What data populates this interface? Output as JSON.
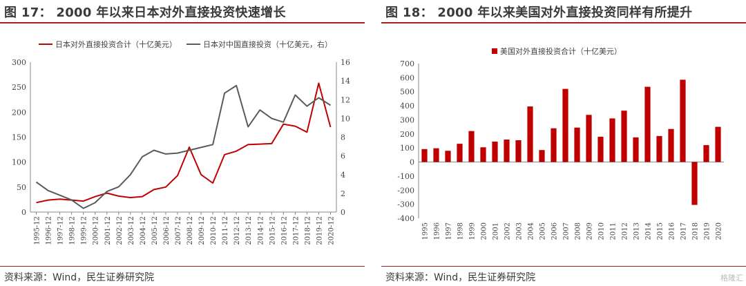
{
  "panels": [
    {
      "title": "图 17：  2000 年以来日本对外直接投资快速增长",
      "source": "资料来源：Wind，民生证券研究院"
    },
    {
      "title": "图 18：  2000 年以来美国对外直接投资同样有所提升",
      "source": "资料来源：Wind，民生证券研究院"
    }
  ],
  "watermark": "格隆汇",
  "chart_data": [
    {
      "type": "line",
      "title": "",
      "x": [
        "1995-12",
        "1996-12",
        "1997-12",
        "1998-12",
        "1999-12",
        "2000-12",
        "2001-12",
        "2002-12",
        "2003-12",
        "2004-12",
        "2005-12",
        "2006-12",
        "2007-12",
        "2008-12",
        "2009-12",
        "2010-12",
        "2011-12",
        "2012-12",
        "2013-12",
        "2014-12",
        "2015-12",
        "2016-12",
        "2017-12",
        "2018-12",
        "2019-12",
        "2020-12"
      ],
      "series": [
        {
          "name": "日本对外直接投资合计（十亿美元）",
          "axis": "left",
          "color": "#c00000",
          "values": [
            19,
            24,
            26,
            24,
            22,
            31,
            38,
            32,
            29,
            31,
            45,
            50,
            73,
            130,
            75,
            58,
            115,
            122,
            135,
            136,
            137,
            176,
            172,
            160,
            258,
            170
          ]
        },
        {
          "name": "日本对中国直接投资（十亿美元，右）",
          "axis": "right",
          "color": "#595959",
          "values": [
            3.2,
            2.3,
            1.8,
            1.3,
            0.4,
            1.0,
            2.2,
            2.7,
            4.0,
            5.9,
            6.6,
            6.2,
            6.3,
            6.6,
            6.9,
            7.2,
            12.7,
            13.5,
            9.1,
            10.9,
            10.0,
            9.6,
            12.5,
            11.3,
            12.2,
            11.4
          ]
        }
      ],
      "ylim_left": [
        0,
        300
      ],
      "yticks_left": [
        0,
        50,
        100,
        150,
        200,
        250,
        300
      ],
      "ylim_right": [
        0,
        16
      ],
      "yticks_right": [
        0,
        2,
        4,
        6,
        8,
        10,
        12,
        14,
        16
      ],
      "legend_position": "top-center",
      "grid": false
    },
    {
      "type": "bar",
      "title": "",
      "categories": [
        "1995",
        "1996",
        "1997",
        "1998",
        "1999",
        "2000",
        "2001",
        "2002",
        "2003",
        "2004",
        "2005",
        "2006",
        "2007",
        "2008",
        "2009",
        "2010",
        "2011",
        "2012",
        "2013",
        "2014",
        "2015",
        "2016",
        "2017",
        "2018",
        "2019",
        "2020"
      ],
      "series": [
        {
          "name": "美国对外直接投资合计（十亿美元）",
          "color": "#c00000",
          "values": [
            92,
            98,
            80,
            130,
            220,
            105,
            145,
            160,
            155,
            395,
            85,
            240,
            520,
            245,
            335,
            180,
            310,
            365,
            175,
            535,
            185,
            235,
            585,
            -305,
            120,
            250
          ]
        }
      ],
      "ylim": [
        -400,
        700
      ],
      "yticks": [
        -400,
        -300,
        -200,
        -100,
        0,
        100,
        200,
        300,
        400,
        500,
        600,
        700
      ],
      "legend_position": "top-center",
      "grid": false
    }
  ]
}
